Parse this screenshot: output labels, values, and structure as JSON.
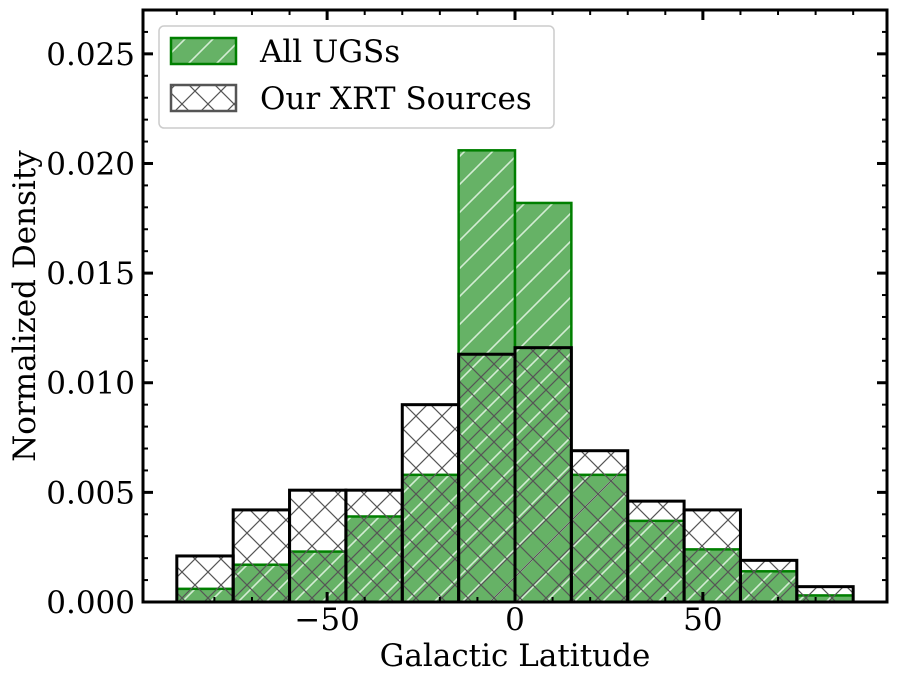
{
  "chart_data": {
    "type": "bar",
    "xlabel": "Galactic Latitude",
    "ylabel": "Normalized Density",
    "xlim": [
      -99,
      99
    ],
    "ylim": [
      0,
      0.027
    ],
    "xticks": [
      -50,
      0,
      50
    ],
    "xtick_labels": [
      "−50",
      "0",
      "50"
    ],
    "yticks": [
      0.0,
      0.005,
      0.01,
      0.015,
      0.02,
      0.025
    ],
    "ytick_labels": [
      "0.000",
      "0.005",
      "0.010",
      "0.015",
      "0.020",
      "0.025"
    ],
    "legend_position": "upper-left",
    "bin_edges": [
      -90,
      -75,
      -60,
      -45,
      -30,
      -15,
      0,
      15,
      30,
      45,
      60,
      75,
      90
    ],
    "series": [
      {
        "name": "All UGSs",
        "style": "filled-hatched-diagonal",
        "fill_color": "#66b266",
        "edge_color": "#007f00",
        "hatch_color": "#d4ecd4",
        "values": [
          0.0006,
          0.0017,
          0.0023,
          0.0039,
          0.0058,
          0.0206,
          0.0182,
          0.0058,
          0.0037,
          0.0024,
          0.0014,
          0.0003
        ]
      },
      {
        "name": "Our XRT Sources",
        "style": "outline-hatched-cross",
        "fill_color": "none",
        "edge_color": "#000000",
        "hatch_color": "#555555",
        "values": [
          0.0021,
          0.0042,
          0.0051,
          0.0051,
          0.009,
          0.0113,
          0.0116,
          0.0069,
          0.0046,
          0.0042,
          0.0019,
          0.0007
        ]
      }
    ]
  }
}
